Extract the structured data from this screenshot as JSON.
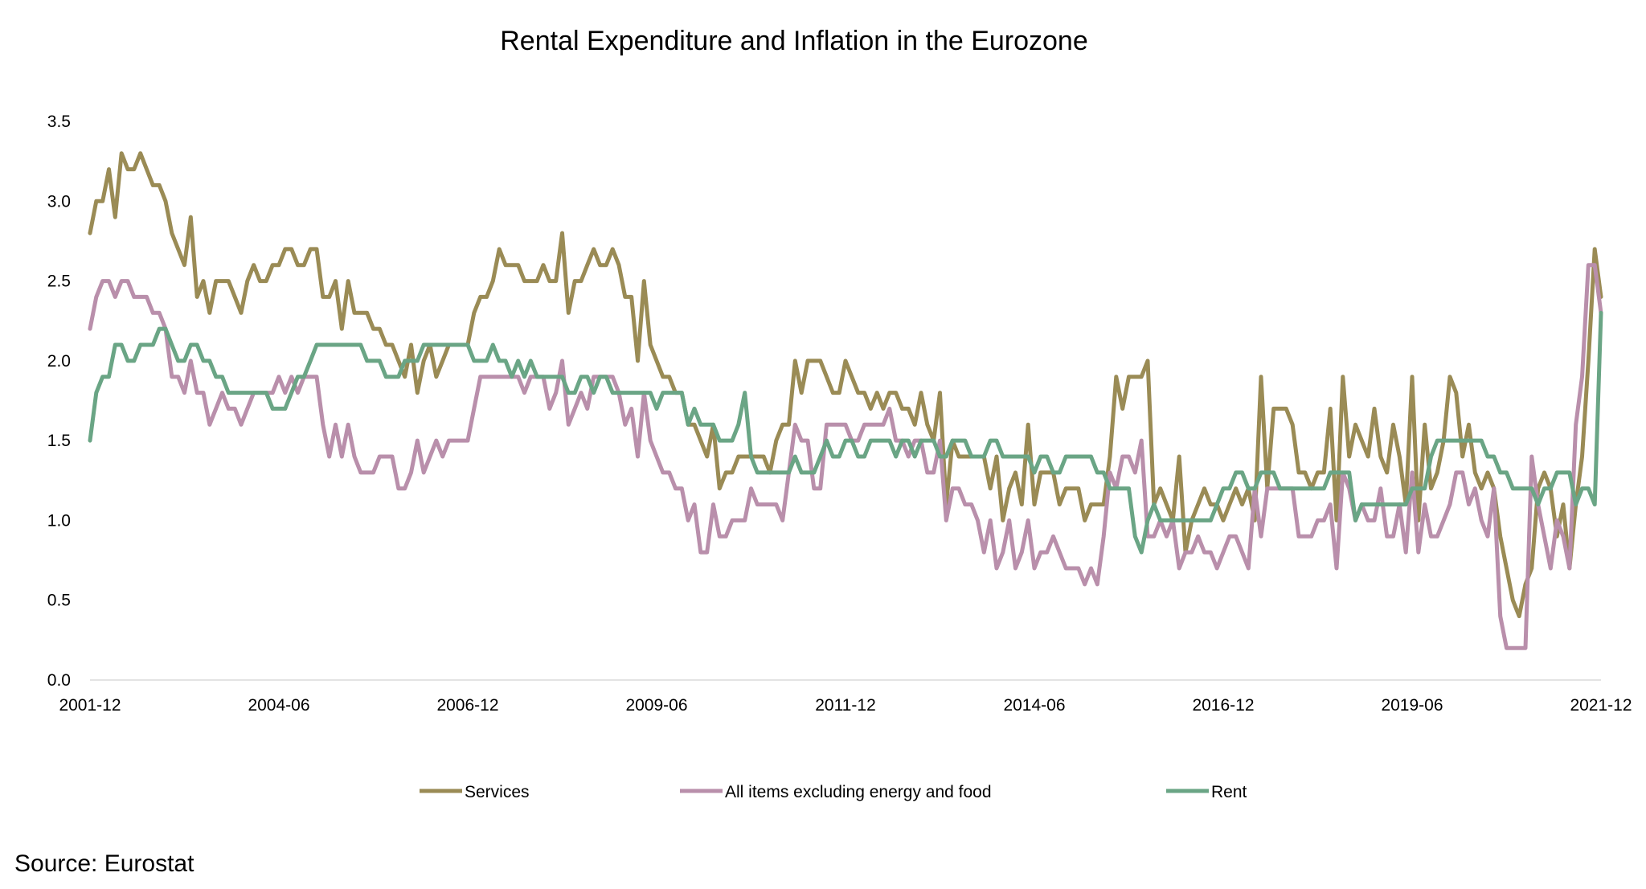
{
  "chart_data": {
    "type": "line",
    "title": "Rental Expenditure and Inflation in the Eurozone",
    "source": "Source: Eurostat",
    "xlabel": "",
    "ylabel": "",
    "x_start": "2001-12",
    "x_end": "2021-12",
    "x_frequency": "monthly",
    "x_ticks": [
      "2001-12",
      "2004-06",
      "2006-12",
      "2009-06",
      "2011-12",
      "2014-06",
      "2016-12",
      "2019-06",
      "2021-12"
    ],
    "y_ticks": [
      "0.0",
      "0.5",
      "1.0",
      "1.5",
      "2.0",
      "2.5",
      "3.0",
      "3.5"
    ],
    "ylim": [
      0,
      3.5
    ],
    "grid": false,
    "legend_position": "bottom",
    "series": [
      {
        "name": "Services",
        "color": "#9a8b55",
        "values": [
          2.8,
          3.0,
          3.0,
          3.2,
          2.9,
          3.3,
          3.2,
          3.2,
          3.3,
          3.2,
          3.1,
          3.1,
          3.0,
          2.8,
          2.7,
          2.6,
          2.9,
          2.4,
          2.5,
          2.3,
          2.5,
          2.5,
          2.5,
          2.4,
          2.3,
          2.5,
          2.6,
          2.5,
          2.5,
          2.6,
          2.6,
          2.7,
          2.7,
          2.6,
          2.6,
          2.7,
          2.7,
          2.4,
          2.4,
          2.5,
          2.2,
          2.5,
          2.3,
          2.3,
          2.3,
          2.2,
          2.2,
          2.1,
          2.1,
          2.0,
          1.9,
          2.1,
          1.8,
          2.0,
          2.1,
          1.9,
          2.0,
          2.1,
          2.1,
          2.1,
          2.1,
          2.3,
          2.4,
          2.4,
          2.5,
          2.7,
          2.6,
          2.6,
          2.6,
          2.5,
          2.5,
          2.5,
          2.6,
          2.5,
          2.5,
          2.8,
          2.3,
          2.5,
          2.5,
          2.6,
          2.7,
          2.6,
          2.6,
          2.7,
          2.6,
          2.4,
          2.4,
          2.0,
          2.5,
          2.1,
          2.0,
          1.9,
          1.9,
          1.8,
          1.8,
          1.6,
          1.6,
          1.5,
          1.4,
          1.6,
          1.2,
          1.3,
          1.3,
          1.4,
          1.4,
          1.4,
          1.4,
          1.4,
          1.3,
          1.5,
          1.6,
          1.6,
          2.0,
          1.8,
          2.0,
          2.0,
          2.0,
          1.9,
          1.8,
          1.8,
          2.0,
          1.9,
          1.8,
          1.8,
          1.7,
          1.8,
          1.7,
          1.8,
          1.8,
          1.7,
          1.7,
          1.6,
          1.8,
          1.6,
          1.5,
          1.8,
          1.1,
          1.5,
          1.4,
          1.4,
          1.4,
          1.4,
          1.4,
          1.2,
          1.4,
          1.0,
          1.2,
          1.3,
          1.1,
          1.6,
          1.1,
          1.3,
          1.3,
          1.3,
          1.1,
          1.2,
          1.2,
          1.2,
          1.0,
          1.1,
          1.1,
          1.1,
          1.4,
          1.9,
          1.7,
          1.9,
          1.9,
          1.9,
          2.0,
          1.1,
          1.2,
          1.1,
          1.0,
          1.4,
          0.8,
          1.0,
          1.1,
          1.2,
          1.1,
          1.1,
          1.0,
          1.1,
          1.2,
          1.1,
          1.2,
          1.0,
          1.9,
          1.2,
          1.7,
          1.7,
          1.7,
          1.6,
          1.3,
          1.3,
          1.2,
          1.3,
          1.3,
          1.7,
          1.0,
          1.9,
          1.4,
          1.6,
          1.5,
          1.4,
          1.7,
          1.4,
          1.3,
          1.6,
          1.4,
          1.1,
          1.9,
          1.0,
          1.6,
          1.2,
          1.3,
          1.5,
          1.9,
          1.8,
          1.4,
          1.6,
          1.3,
          1.2,
          1.3,
          1.2,
          0.9,
          0.7,
          0.5,
          0.4,
          0.6,
          0.7,
          1.2,
          1.3,
          1.2,
          0.9,
          1.1,
          0.7,
          1.1,
          1.4,
          2.0,
          2.7,
          2.4
        ]
      },
      {
        "name": "All items excluding energy and food",
        "color": "#b98fab",
        "values": [
          2.2,
          2.4,
          2.5,
          2.5,
          2.4,
          2.5,
          2.5,
          2.4,
          2.4,
          2.4,
          2.3,
          2.3,
          2.2,
          1.9,
          1.9,
          1.8,
          2.0,
          1.8,
          1.8,
          1.6,
          1.7,
          1.8,
          1.7,
          1.7,
          1.6,
          1.7,
          1.8,
          1.8,
          1.8,
          1.8,
          1.9,
          1.8,
          1.9,
          1.8,
          1.9,
          1.9,
          1.9,
          1.6,
          1.4,
          1.6,
          1.4,
          1.6,
          1.4,
          1.3,
          1.3,
          1.3,
          1.4,
          1.4,
          1.4,
          1.2,
          1.2,
          1.3,
          1.5,
          1.3,
          1.4,
          1.5,
          1.4,
          1.5,
          1.5,
          1.5,
          1.5,
          1.7,
          1.9,
          1.9,
          1.9,
          1.9,
          1.9,
          1.9,
          1.9,
          1.8,
          1.9,
          1.9,
          1.9,
          1.7,
          1.8,
          2.0,
          1.6,
          1.7,
          1.8,
          1.7,
          1.9,
          1.9,
          1.9,
          1.9,
          1.8,
          1.6,
          1.7,
          1.4,
          1.8,
          1.5,
          1.4,
          1.3,
          1.3,
          1.2,
          1.2,
          1.0,
          1.1,
          0.8,
          0.8,
          1.1,
          0.9,
          0.9,
          1.0,
          1.0,
          1.0,
          1.2,
          1.1,
          1.1,
          1.1,
          1.1,
          1.0,
          1.3,
          1.6,
          1.5,
          1.5,
          1.2,
          1.2,
          1.6,
          1.6,
          1.6,
          1.6,
          1.5,
          1.5,
          1.6,
          1.6,
          1.6,
          1.6,
          1.7,
          1.5,
          1.5,
          1.4,
          1.5,
          1.5,
          1.3,
          1.3,
          1.5,
          1.0,
          1.2,
          1.2,
          1.1,
          1.1,
          1.0,
          0.8,
          1.0,
          0.7,
          0.8,
          1.0,
          0.7,
          0.8,
          1.0,
          0.7,
          0.8,
          0.8,
          0.9,
          0.8,
          0.7,
          0.7,
          0.7,
          0.6,
          0.7,
          0.6,
          0.9,
          1.3,
          1.2,
          1.4,
          1.4,
          1.3,
          1.5,
          0.9,
          0.9,
          1.0,
          0.9,
          1.0,
          0.7,
          0.8,
          0.8,
          0.9,
          0.8,
          0.8,
          0.7,
          0.8,
          0.9,
          0.9,
          0.8,
          0.7,
          1.2,
          0.9,
          1.2,
          1.2,
          1.2,
          1.2,
          1.2,
          0.9,
          0.9,
          0.9,
          1.0,
          1.0,
          1.1,
          0.7,
          1.3,
          1.2,
          1.0,
          1.1,
          1.0,
          1.0,
          1.2,
          0.9,
          0.9,
          1.1,
          0.8,
          1.3,
          0.8,
          1.1,
          0.9,
          0.9,
          1.0,
          1.1,
          1.3,
          1.3,
          1.1,
          1.2,
          1.0,
          0.9,
          1.2,
          0.4,
          0.2,
          0.2,
          0.2,
          0.2,
          1.4,
          1.1,
          0.9,
          0.7,
          1.0,
          0.9,
          0.7,
          1.6,
          1.9,
          2.6,
          2.6,
          2.3
        ]
      },
      {
        "name": "Rent",
        "color": "#6aa585",
        "values": [
          1.5,
          1.8,
          1.9,
          1.9,
          2.1,
          2.1,
          2.0,
          2.0,
          2.1,
          2.1,
          2.1,
          2.2,
          2.2,
          2.1,
          2.0,
          2.0,
          2.1,
          2.1,
          2.0,
          2.0,
          1.9,
          1.9,
          1.8,
          1.8,
          1.8,
          1.8,
          1.8,
          1.8,
          1.8,
          1.7,
          1.7,
          1.7,
          1.8,
          1.9,
          1.9,
          2.0,
          2.1,
          2.1,
          2.1,
          2.1,
          2.1,
          2.1,
          2.1,
          2.1,
          2.0,
          2.0,
          2.0,
          1.9,
          1.9,
          1.9,
          2.0,
          2.0,
          2.0,
          2.1,
          2.1,
          2.1,
          2.1,
          2.1,
          2.1,
          2.1,
          2.1,
          2.0,
          2.0,
          2.0,
          2.1,
          2.0,
          2.0,
          1.9,
          2.0,
          1.9,
          2.0,
          1.9,
          1.9,
          1.9,
          1.9,
          1.9,
          1.8,
          1.8,
          1.9,
          1.9,
          1.8,
          1.9,
          1.9,
          1.8,
          1.8,
          1.8,
          1.8,
          1.8,
          1.8,
          1.8,
          1.7,
          1.8,
          1.8,
          1.8,
          1.8,
          1.6,
          1.7,
          1.6,
          1.6,
          1.6,
          1.5,
          1.5,
          1.5,
          1.6,
          1.8,
          1.4,
          1.3,
          1.3,
          1.3,
          1.3,
          1.3,
          1.3,
          1.4,
          1.3,
          1.3,
          1.3,
          1.4,
          1.5,
          1.4,
          1.4,
          1.5,
          1.5,
          1.4,
          1.4,
          1.5,
          1.5,
          1.5,
          1.5,
          1.4,
          1.5,
          1.5,
          1.4,
          1.5,
          1.5,
          1.5,
          1.4,
          1.4,
          1.5,
          1.5,
          1.5,
          1.4,
          1.4,
          1.4,
          1.5,
          1.5,
          1.4,
          1.4,
          1.4,
          1.4,
          1.4,
          1.3,
          1.4,
          1.4,
          1.3,
          1.3,
          1.4,
          1.4,
          1.4,
          1.4,
          1.4,
          1.3,
          1.3,
          1.2,
          1.2,
          1.2,
          1.2,
          0.9,
          0.8,
          1.0,
          1.1,
          1.0,
          1.0,
          1.0,
          1.0,
          1.0,
          1.0,
          1.0,
          1.0,
          1.0,
          1.1,
          1.2,
          1.2,
          1.3,
          1.3,
          1.2,
          1.2,
          1.3,
          1.3,
          1.3,
          1.2,
          1.2,
          1.2,
          1.2,
          1.2,
          1.2,
          1.2,
          1.2,
          1.3,
          1.3,
          1.3,
          1.3,
          1.0,
          1.1,
          1.1,
          1.1,
          1.1,
          1.1,
          1.1,
          1.1,
          1.1,
          1.2,
          1.2,
          1.2,
          1.4,
          1.5,
          1.5,
          1.5,
          1.5,
          1.5,
          1.5,
          1.5,
          1.5,
          1.4,
          1.4,
          1.3,
          1.3,
          1.2,
          1.2,
          1.2,
          1.2,
          1.1,
          1.2,
          1.2,
          1.3,
          1.3,
          1.3,
          1.1,
          1.2,
          1.2,
          1.1,
          2.3
        ]
      }
    ]
  }
}
